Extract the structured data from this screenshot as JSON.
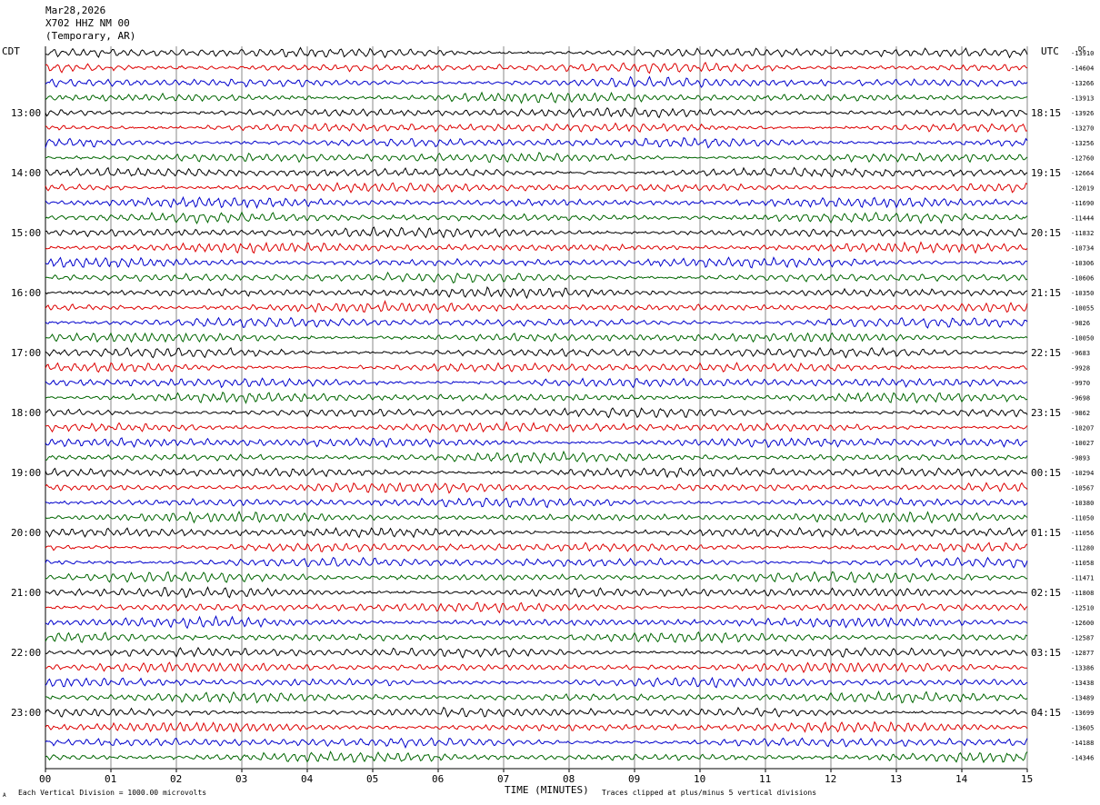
{
  "header": {
    "date": "Mar28,2026",
    "station": "X702 HHZ NM 00",
    "network": "(Temporary, AR)"
  },
  "footer": {
    "scale_note": "Each Vertical Division = 1000.00 microvolts",
    "clip_note": "Traces clipped at plus/minus 5 vertical divisions",
    "corner_mark": "A"
  },
  "chart_data": {
    "type": "line",
    "title": "",
    "xlabel": "TIME (MINUTES)",
    "left_axis_label": "CDT",
    "right_axis_label": "UTC",
    "dc_label": "DC",
    "xlim": [
      0,
      15
    ],
    "x_ticks": [
      "00",
      "01",
      "02",
      "03",
      "04",
      "05",
      "06",
      "07",
      "08",
      "09",
      "10",
      "11",
      "12",
      "13",
      "14",
      "15"
    ],
    "grid": "vertical lines every minute",
    "trace_colors": [
      "#000000",
      "#dd0000",
      "#0000cc",
      "#006600"
    ],
    "rows_per_hour": 4,
    "minutes_per_row": 15,
    "left_hour_labels": [
      "13:00",
      "14:00",
      "15:00",
      "16:00",
      "17:00",
      "18:00",
      "19:00",
      "20:00",
      "21:00",
      "22:00",
      "23:00"
    ],
    "right_hour_labels": [
      "18:15",
      "19:15",
      "20:15",
      "21:15",
      "22:15",
      "23:15",
      "00:15",
      "01:15",
      "02:15",
      "03:15",
      "04:15"
    ],
    "dc_offsets": [
      "-13910",
      "-14604",
      "-13266",
      "-13913",
      "-13926",
      "-13270",
      "-13256",
      "-12760",
      "-12664",
      "-12019",
      "-11690",
      "-11444",
      "-11832",
      "-10734",
      "-10306",
      "-10606",
      "-10350",
      "-10055",
      "-9826",
      "-10050",
      "-9683",
      "-9928",
      "-9970",
      "-9698",
      "-9862",
      "-10207",
      "-10027",
      "-9893",
      "-10294",
      "-10567",
      "-10380",
      "-11050",
      "-11056",
      "-11280",
      "-11058",
      "-11471",
      "-11808",
      "-12510",
      "-12600",
      "-12587",
      "-12877",
      "-13386",
      "-13438",
      "-13489",
      "-13699",
      "-13605",
      "-14188",
      "-14346"
    ]
  }
}
